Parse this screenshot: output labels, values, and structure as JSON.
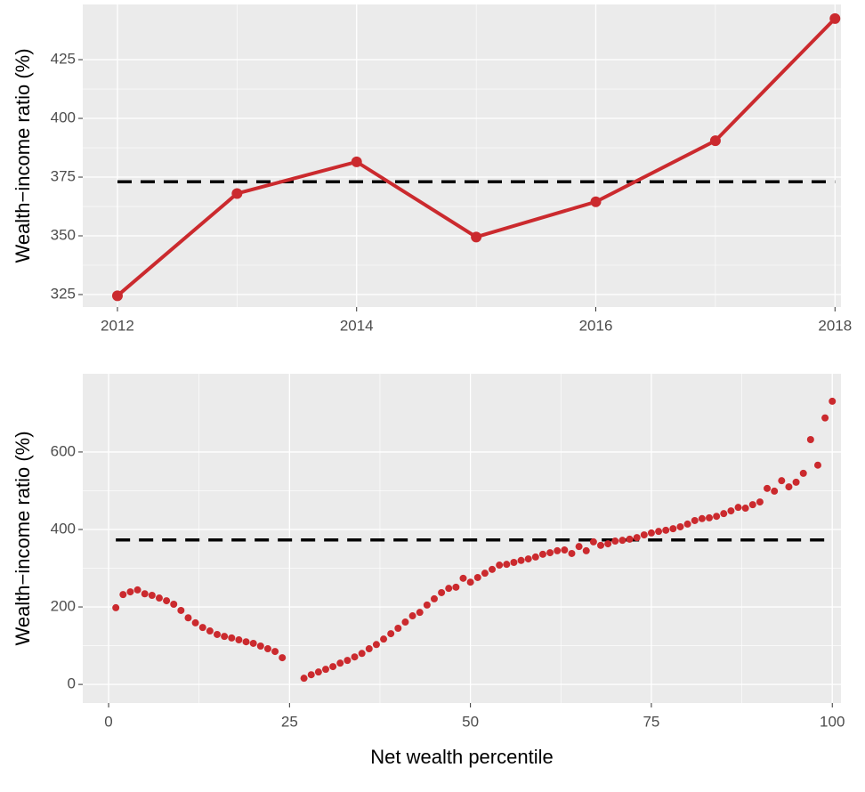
{
  "chart_data": [
    {
      "type": "line",
      "ylabel": "Wealth−income ratio (%)",
      "x": [
        2012,
        2013,
        2014,
        2015,
        2016,
        2017,
        2018
      ],
      "series": [
        {
          "name": "Wealth−income ratio",
          "color": "#cb2a2e",
          "values": [
            324.5,
            368,
            381.5,
            349.5,
            364.5,
            390.5,
            442.5
          ]
        }
      ],
      "reference": 373,
      "xlim": [
        2011.71,
        2018.05
      ],
      "xticks": [
        2012,
        2014,
        2016,
        2018
      ],
      "ylim": [
        319.7,
        448.5
      ],
      "yticks": [
        325,
        350,
        375,
        400,
        425
      ],
      "grid": true
    },
    {
      "type": "scatter",
      "ylabel": "Wealth−income ratio (%)",
      "xlabel": "Net wealth percentile",
      "x": [
        1,
        2,
        3,
        4,
        5,
        6,
        7,
        8,
        9,
        10,
        11,
        12,
        13,
        14,
        15,
        16,
        17,
        18,
        19,
        20,
        21,
        22,
        23,
        24,
        25,
        26,
        27,
        28,
        29,
        30,
        31,
        32,
        33,
        34,
        35,
        36,
        37,
        38,
        39,
        40,
        41,
        42,
        43,
        44,
        45,
        46,
        47,
        48,
        49,
        50,
        51,
        52,
        53,
        54,
        55,
        56,
        57,
        58,
        59,
        60,
        61,
        62,
        63,
        64,
        65,
        66,
        67,
        68,
        69,
        70,
        71,
        72,
        73,
        74,
        75,
        76,
        77,
        78,
        79,
        80,
        81,
        82,
        83,
        84,
        85,
        86,
        87,
        88,
        89,
        90,
        91,
        92,
        93,
        94,
        95,
        96,
        97,
        98,
        99,
        100
      ],
      "series": [
        {
          "name": "Wealth−income ratio",
          "color": "#cb2a2e",
          "values": [
            198,
            232,
            239,
            244,
            234,
            230,
            223,
            216,
            207,
            191,
            172,
            159,
            147,
            138,
            129,
            124,
            120,
            115,
            110,
            106,
            99,
            92,
            85,
            69,
            null,
            null,
            16,
            25,
            32,
            39,
            46,
            55,
            62,
            71,
            80,
            92,
            103,
            117,
            131,
            145,
            161,
            177,
            186,
            205,
            221,
            237,
            248,
            251,
            274,
            264,
            276,
            287,
            297,
            308,
            310,
            315,
            320,
            324,
            329,
            336,
            340,
            345,
            347,
            338,
            356,
            345,
            368,
            359,
            363,
            370,
            372,
            375,
            379,
            386,
            391,
            395,
            398,
            402,
            407,
            414,
            423,
            428,
            430,
            434,
            441,
            448,
            457,
            455,
            464,
            471,
            506,
            499,
            526,
            510,
            522,
            545,
            632,
            566,
            688,
            731
          ]
        }
      ],
      "reference": 373,
      "xlim": [
        -3.57,
        101.2
      ],
      "xticks": [
        0,
        25,
        50,
        75,
        100
      ],
      "ylim": [
        -48,
        802
      ],
      "yticks": [
        0,
        200,
        400,
        600
      ],
      "grid": true
    }
  ]
}
